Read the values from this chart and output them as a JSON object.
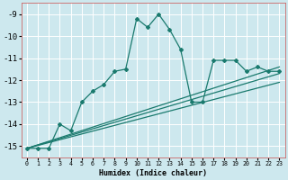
{
  "xlabel": "Humidex (Indice chaleur)",
  "bg_color": "#cde8ee",
  "grid_color": "#ffffff",
  "line_color": "#1a7a6e",
  "spine_color": "#cc6666",
  "xlim": [
    -0.5,
    23.5
  ],
  "ylim": [
    -15.5,
    -8.5
  ],
  "yticks": [
    -15,
    -14,
    -13,
    -12,
    -11,
    -10,
    -9
  ],
  "xticks": [
    0,
    1,
    2,
    3,
    4,
    5,
    6,
    7,
    8,
    9,
    10,
    11,
    12,
    13,
    14,
    15,
    16,
    17,
    18,
    19,
    20,
    21,
    22,
    23
  ],
  "series1_x": [
    0,
    1,
    2,
    3,
    4,
    5,
    6,
    7,
    8,
    9,
    10,
    11,
    12,
    13,
    14,
    15,
    16,
    17,
    18,
    19,
    20,
    21,
    22,
    23
  ],
  "series1_y": [
    -15.1,
    -15.1,
    -15.1,
    -14.0,
    -14.3,
    -13.0,
    -12.5,
    -12.2,
    -11.6,
    -11.5,
    -9.2,
    -9.6,
    -9.0,
    -9.7,
    -10.6,
    -13.0,
    -13.0,
    -11.1,
    -11.1,
    -11.1,
    -11.6,
    -11.4,
    -11.6,
    -11.6
  ],
  "line1_x": [
    0,
    23
  ],
  "line1_y": [
    -15.1,
    -11.4
  ],
  "line2_x": [
    0,
    23
  ],
  "line2_y": [
    -15.1,
    -11.7
  ],
  "line3_x": [
    0,
    23
  ],
  "line3_y": [
    -15.1,
    -12.1
  ]
}
